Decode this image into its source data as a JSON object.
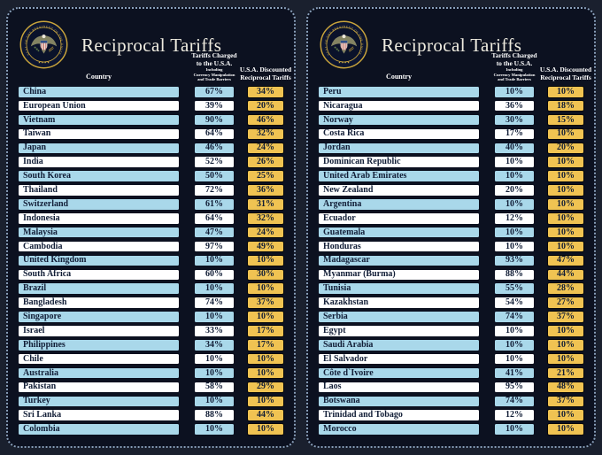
{
  "page": {
    "title": "Reciprocal Tariffs"
  },
  "columns": {
    "country": "Country",
    "charged_line1": "Tariffs Charged",
    "charged_line2": "to the U.S.A.",
    "charged_sub1": "Including",
    "charged_sub2": "Currency Manipulation",
    "charged_sub3": "and Trade Barriers",
    "discount_line1": "U.S.A. Discounted",
    "discount_line2": "Reciprocal Tariffs"
  },
  "seal": {
    "ring_text": "SEAL OF THE PRESIDENT OF THE UNITED STATES",
    "stars": "★ ★ ★ ★"
  },
  "colors": {
    "outer_background": "#1A202E",
    "panel_background": "#0C1120",
    "dotted_border": "#8AA0BA",
    "row_blue": "#A9D8EA",
    "row_white": "#FFFFFF",
    "discount_gold": "#F0C352",
    "cell_text": "#111D36",
    "header_text": "#FFFFFF",
    "title_text": "#EFECE0",
    "seal_gold": "#C9A43B"
  },
  "chart_data": {
    "type": "table",
    "title": "Reciprocal Tariffs",
    "columns": [
      "Country",
      "Tariffs Charged to the U.S.A. Including Currency Manipulation and Trade Barriers",
      "U.S.A. Discounted Reciprocal Tariffs"
    ],
    "panels": [
      {
        "rows": [
          [
            "China",
            "67%",
            "34%"
          ],
          [
            "European Union",
            "39%",
            "20%"
          ],
          [
            "Vietnam",
            "90%",
            "46%"
          ],
          [
            "Taiwan",
            "64%",
            "32%"
          ],
          [
            "Japan",
            "46%",
            "24%"
          ],
          [
            "India",
            "52%",
            "26%"
          ],
          [
            "South Korea",
            "50%",
            "25%"
          ],
          [
            "Thailand",
            "72%",
            "36%"
          ],
          [
            "Switzerland",
            "61%",
            "31%"
          ],
          [
            "Indonesia",
            "64%",
            "32%"
          ],
          [
            "Malaysia",
            "47%",
            "24%"
          ],
          [
            "Cambodia",
            "97%",
            "49%"
          ],
          [
            "United Kingdom",
            "10%",
            "10%"
          ],
          [
            "South Africa",
            "60%",
            "30%"
          ],
          [
            "Brazil",
            "10%",
            "10%"
          ],
          [
            "Bangladesh",
            "74%",
            "37%"
          ],
          [
            "Singapore",
            "10%",
            "10%"
          ],
          [
            "Israel",
            "33%",
            "17%"
          ],
          [
            "Philippines",
            "34%",
            "17%"
          ],
          [
            "Chile",
            "10%",
            "10%"
          ],
          [
            "Australia",
            "10%",
            "10%"
          ],
          [
            "Pakistan",
            "58%",
            "29%"
          ],
          [
            "Turkey",
            "10%",
            "10%"
          ],
          [
            "Sri Lanka",
            "88%",
            "44%"
          ],
          [
            "Colombia",
            "10%",
            "10%"
          ]
        ]
      },
      {
        "rows": [
          [
            "Peru",
            "10%",
            "10%"
          ],
          [
            "Nicaragua",
            "36%",
            "18%"
          ],
          [
            "Norway",
            "30%",
            "15%"
          ],
          [
            "Costa Rica",
            "17%",
            "10%"
          ],
          [
            "Jordan",
            "40%",
            "20%"
          ],
          [
            "Dominican Republic",
            "10%",
            "10%"
          ],
          [
            "United Arab Emirates",
            "10%",
            "10%"
          ],
          [
            "New Zealand",
            "20%",
            "10%"
          ],
          [
            "Argentina",
            "10%",
            "10%"
          ],
          [
            "Ecuador",
            "12%",
            "10%"
          ],
          [
            "Guatemala",
            "10%",
            "10%"
          ],
          [
            "Honduras",
            "10%",
            "10%"
          ],
          [
            "Madagascar",
            "93%",
            "47%"
          ],
          [
            "Myanmar (Burma)",
            "88%",
            "44%"
          ],
          [
            "Tunisia",
            "55%",
            "28%"
          ],
          [
            "Kazakhstan",
            "54%",
            "27%"
          ],
          [
            "Serbia",
            "74%",
            "37%"
          ],
          [
            "Egypt",
            "10%",
            "10%"
          ],
          [
            "Saudi Arabia",
            "10%",
            "10%"
          ],
          [
            "El Salvador",
            "10%",
            "10%"
          ],
          [
            "Côte d`Ivoire",
            "41%",
            "21%"
          ],
          [
            "Laos",
            "95%",
            "48%"
          ],
          [
            "Botswana",
            "74%",
            "37%"
          ],
          [
            "Trinidad and Tobago",
            "12%",
            "10%"
          ],
          [
            "Morocco",
            "10%",
            "10%"
          ]
        ]
      }
    ]
  }
}
